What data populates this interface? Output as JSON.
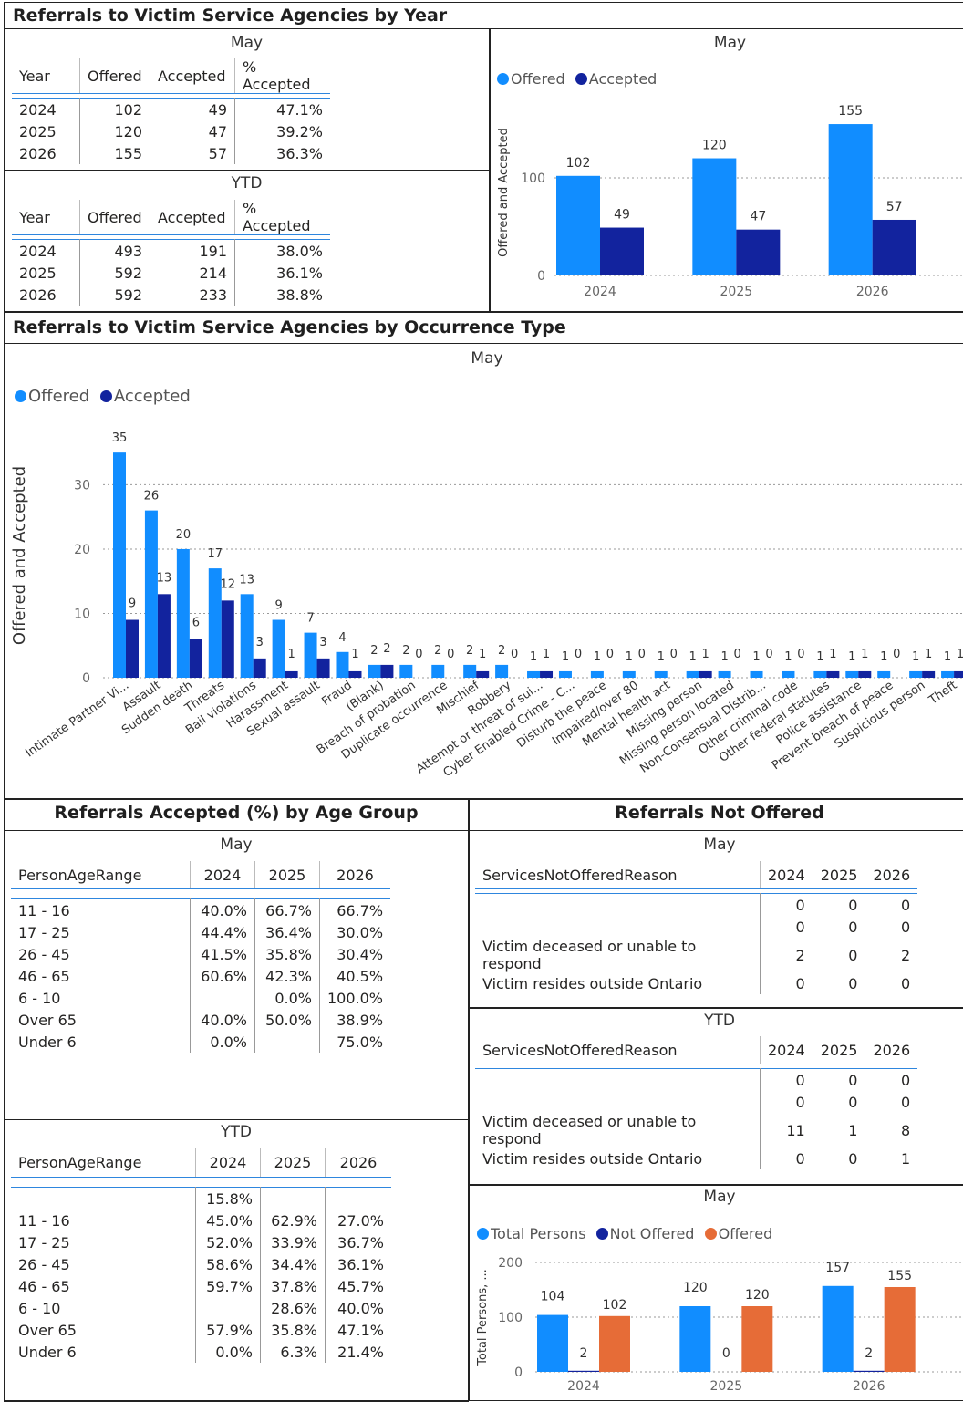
{
  "section1_title": "Referrals to Victim Service Agencies by Year",
  "section2_title": "Referrals to Victim Service Agencies by Occurrence Type",
  "section3_title": "Referrals Accepted (%) by Age Group",
  "section4_title": "Referrals Not Offered",
  "colors": {
    "offered": "#118DFF",
    "accepted": "#12239E",
    "not_offered": "#12239E",
    "offered_orange": "#E66C37",
    "total": "#118DFF"
  },
  "year_may_table": {
    "title": "May",
    "headers": [
      "Year",
      "Offered",
      "Accepted",
      "% Accepted"
    ],
    "rows": [
      [
        "2024",
        "102",
        "49",
        "47.1%"
      ],
      [
        "2025",
        "120",
        "47",
        "39.2%"
      ],
      [
        "2026",
        "155",
        "57",
        "36.3%"
      ]
    ]
  },
  "year_ytd_table": {
    "title": "YTD",
    "headers": [
      "Year",
      "Offered",
      "Accepted",
      "% Accepted"
    ],
    "rows": [
      [
        "2024",
        "493",
        "191",
        "38.0%"
      ],
      [
        "2025",
        "592",
        "214",
        "36.1%"
      ],
      [
        "2026",
        "592",
        "233",
        "38.8%"
      ]
    ]
  },
  "legend_offered": "Offered",
  "legend_accepted": "Accepted",
  "legend_total": "Total Persons",
  "legend_not_offered": "Not Offered",
  "legend_offered2": "Offered",
  "age_may_table": {
    "title": "May",
    "headers": [
      "PersonAgeRange",
      "2024",
      "2025",
      "2026"
    ],
    "rows": [
      [
        "11 - 16",
        "40.0%",
        "66.7%",
        "66.7%"
      ],
      [
        "17 - 25",
        "44.4%",
        "36.4%",
        "30.0%"
      ],
      [
        "26 - 45",
        "41.5%",
        "35.8%",
        "30.4%"
      ],
      [
        "46 - 65",
        "60.6%",
        "42.3%",
        "40.5%"
      ],
      [
        "6 - 10",
        "",
        "0.0%",
        "100.0%"
      ],
      [
        "Over 65",
        "40.0%",
        "50.0%",
        "38.9%"
      ],
      [
        "Under 6",
        "0.0%",
        "",
        "75.0%"
      ]
    ]
  },
  "age_ytd_table": {
    "title": "YTD",
    "headers": [
      "PersonAgeRange",
      "2024",
      "2025",
      "2026"
    ],
    "rows": [
      [
        "",
        "15.8%",
        "",
        ""
      ],
      [
        "11 - 16",
        "45.0%",
        "62.9%",
        "27.0%"
      ],
      [
        "17 - 25",
        "52.0%",
        "33.9%",
        "36.7%"
      ],
      [
        "26 - 45",
        "58.6%",
        "34.4%",
        "36.1%"
      ],
      [
        "46 - 65",
        "59.7%",
        "37.8%",
        "45.7%"
      ],
      [
        "6 - 10",
        "",
        "28.6%",
        "40.0%"
      ],
      [
        "Over 65",
        "57.9%",
        "35.8%",
        "47.1%"
      ],
      [
        "Under 6",
        "0.0%",
        "6.3%",
        "21.4%"
      ]
    ]
  },
  "notoff_may_table": {
    "title": "May",
    "headers": [
      "ServicesNotOfferedReason",
      "2024",
      "2025",
      "2026"
    ],
    "rows": [
      [
        "",
        "0",
        "0",
        "0"
      ],
      [
        "",
        "0",
        "0",
        "0"
      ],
      [
        "Victim deceased or unable to respond",
        "2",
        "0",
        "2"
      ],
      [
        "Victim resides outside Ontario",
        "0",
        "0",
        "0"
      ]
    ]
  },
  "notoff_ytd_table": {
    "title": "YTD",
    "headers": [
      "ServicesNotOfferedReason",
      "2024",
      "2025",
      "2026"
    ],
    "rows": [
      [
        "",
        "0",
        "0",
        "0"
      ],
      [
        "",
        "0",
        "0",
        "0"
      ],
      [
        "Victim deceased or unable to respond",
        "11",
        "1",
        "8"
      ],
      [
        "Victim resides outside Ontario",
        "0",
        "0",
        "1"
      ]
    ]
  },
  "chart_data": [
    {
      "type": "bar",
      "title": "May",
      "ylabel": "Offered and Accepted",
      "categories": [
        "2024",
        "2025",
        "2026"
      ],
      "series": [
        {
          "name": "Offered",
          "values": [
            102,
            120,
            155
          ]
        },
        {
          "name": "Accepted",
          "values": [
            49,
            47,
            57
          ]
        }
      ],
      "yticks": [
        0,
        100
      ],
      "ylim": [
        0,
        170
      ],
      "legend": "top-left",
      "grid": true
    },
    {
      "type": "bar",
      "title": "May",
      "ylabel": "Offered and Accepted",
      "categories": [
        "Intimate Partner Vi...",
        "Assault",
        "Sudden death",
        "Threats",
        "Bail violations",
        "Harassment",
        "Sexual assault",
        "Fraud",
        "(Blank)",
        "Breach of probation",
        "Duplicate occurrence",
        "Mischief",
        "Robbery",
        "Attempt or threat of sui...",
        "Cyber Enabled Crime - C...",
        "Disturb the peace",
        "Impaired/over 80",
        "Mental health act",
        "Missing person",
        "Missing person located",
        "Non-Consensual Distrib...",
        "Other criminal code",
        "Other federal statutes",
        "Police assistance",
        "Prevent breach of peace",
        "Suspicious person",
        "Theft"
      ],
      "series": [
        {
          "name": "Offered",
          "values": [
            35,
            26,
            20,
            17,
            13,
            9,
            7,
            4,
            2,
            2,
            2,
            2,
            2,
            1,
            1,
            1,
            1,
            1,
            1,
            1,
            1,
            1,
            1,
            1,
            1,
            1,
            1
          ]
        },
        {
          "name": "Accepted",
          "values": [
            9,
            13,
            6,
            12,
            3,
            1,
            3,
            1,
            2,
            0,
            0,
            1,
            0,
            1,
            0,
            0,
            0,
            0,
            1,
            0,
            0,
            0,
            1,
            1,
            0,
            1,
            1
          ]
        }
      ],
      "yticks": [
        0,
        10,
        20,
        30
      ],
      "ylim": [
        0,
        38
      ],
      "legend": "top-left",
      "grid": true
    },
    {
      "type": "bar",
      "title": "May",
      "ylabel": "Total Persons, ...",
      "categories": [
        "2024",
        "2025",
        "2026"
      ],
      "series": [
        {
          "name": "Total Persons",
          "values": [
            104,
            120,
            157
          ]
        },
        {
          "name": "Not Offered",
          "values": [
            2,
            0,
            2
          ]
        },
        {
          "name": "Offered",
          "values": [
            102,
            120,
            155
          ]
        }
      ],
      "yticks": [
        0,
        100,
        200
      ],
      "ylim": [
        0,
        200
      ],
      "legend": "top-left",
      "grid": true
    }
  ]
}
